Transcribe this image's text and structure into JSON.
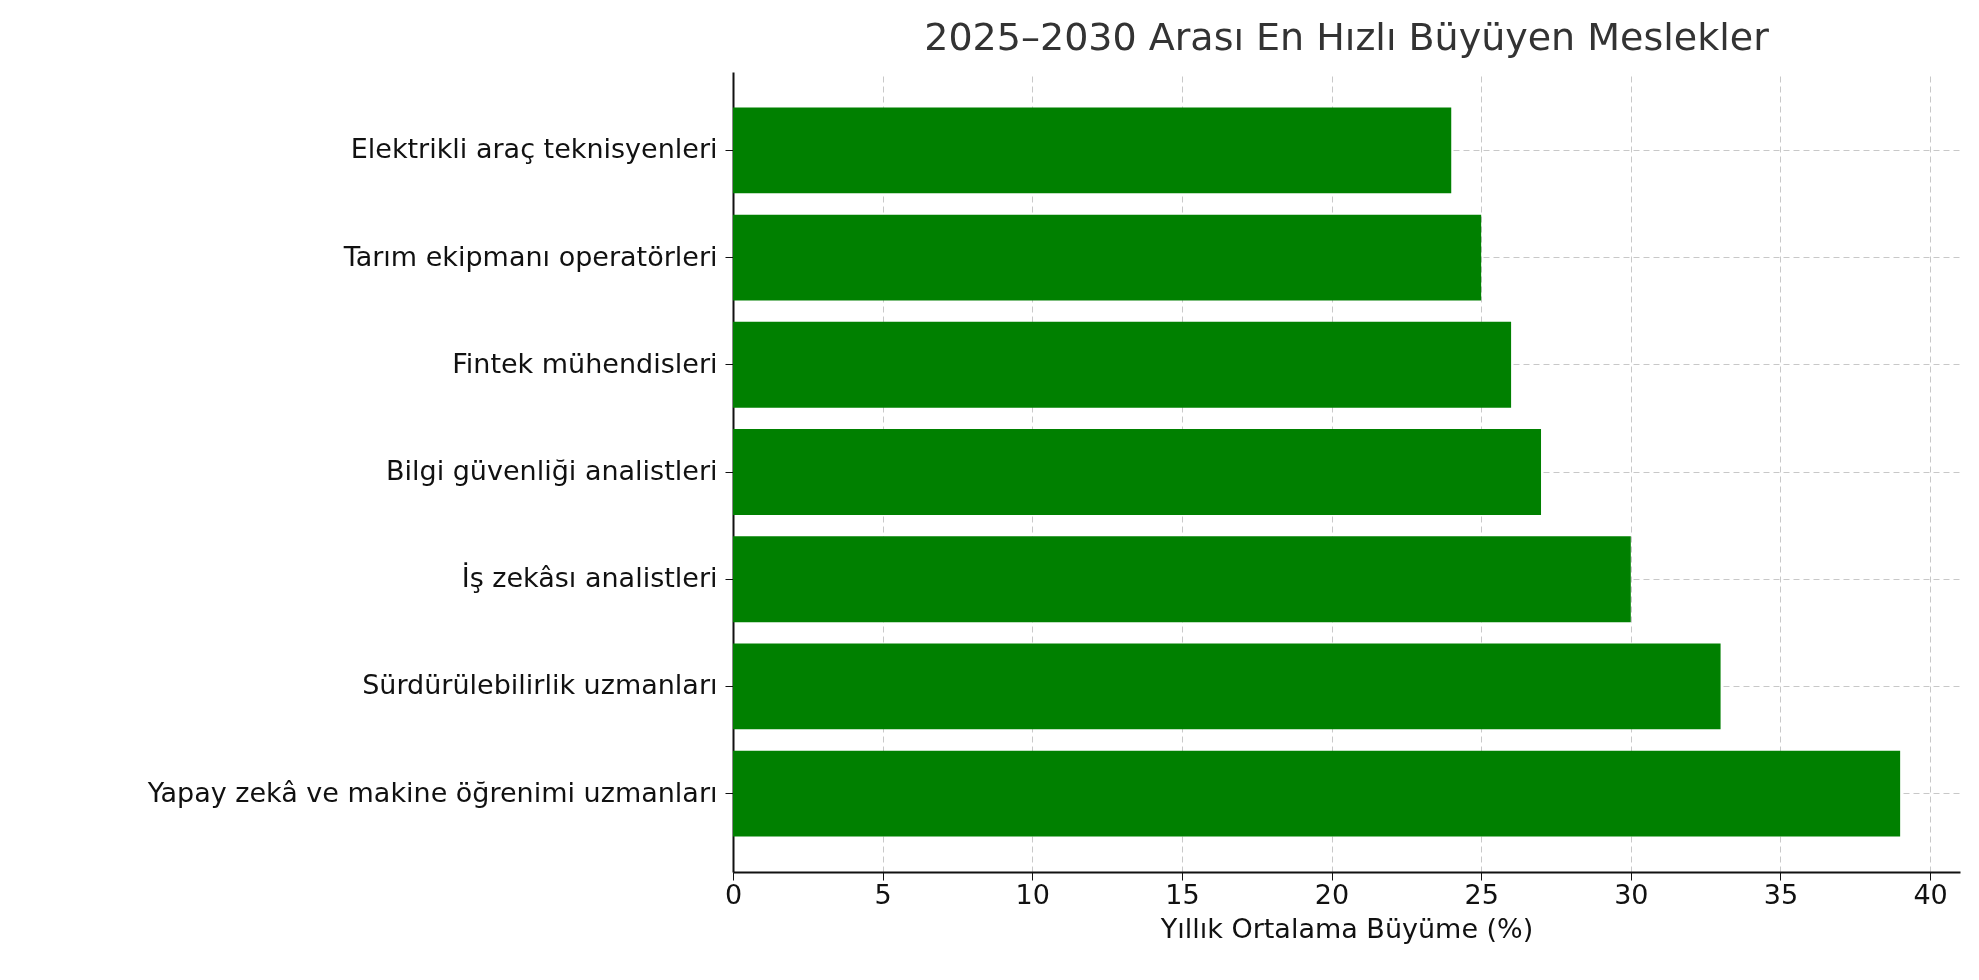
{
  "chart_data": {
    "type": "bar",
    "orientation": "horizontal",
    "title": "2025–2030 Arası En Hızlı Büyüyen Meslekler",
    "xlabel": "Yıllık Ortalama Büyüme (%)",
    "categories": [
      "Elektrikli araç teknisyenleri",
      "Tarım ekipmanı operatörleri",
      "Fintek mühendisleri",
      "Bilgi güvenliği analistleri",
      "İş zekâsı analistleri",
      "Sürdürülebilirlik uzmanları",
      "Yapay zekâ ve makine öğrenimi uzmanları"
    ],
    "values": [
      24,
      25,
      26,
      27,
      30,
      33,
      39
    ],
    "color": "#008000",
    "xlim": [
      0,
      41
    ],
    "xticks": [
      0,
      5,
      10,
      15,
      20,
      25,
      30,
      35,
      40
    ],
    "grid": true,
    "line_style": "dashed"
  }
}
